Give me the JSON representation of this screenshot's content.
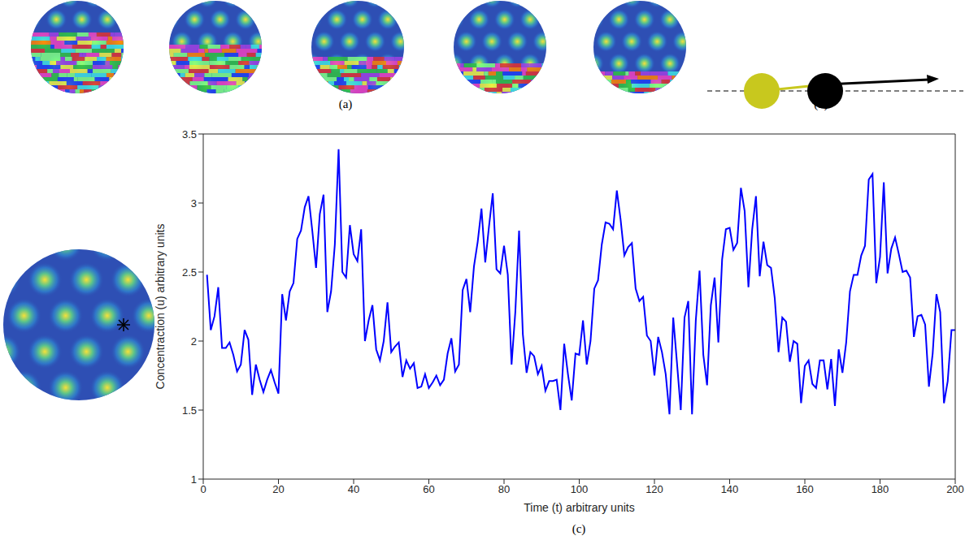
{
  "panel_labels": [
    "(a)",
    "(b)",
    "(c)"
  ],
  "chart_data": {
    "type": "line",
    "x_label": "Time (t) arbitrary units",
    "y_label": "Concentraction (u) arbitrary units",
    "xlim": [
      0,
      200
    ],
    "xticks": [
      0,
      20,
      40,
      60,
      80,
      100,
      120,
      140,
      160,
      180,
      200
    ],
    "ylim": [
      1,
      3.5
    ],
    "yticks": [
      1,
      1.5,
      2,
      2.5,
      3,
      3.5
    ],
    "grid": false,
    "x": [
      1,
      2,
      3,
      4,
      5,
      6,
      7,
      8,
      9,
      10,
      11,
      12,
      13,
      14,
      15,
      16,
      17,
      18,
      19,
      20,
      21,
      22,
      23,
      24,
      25,
      26,
      27,
      28,
      29,
      30,
      31,
      32,
      33,
      34,
      35,
      36,
      37,
      38,
      39,
      40,
      41,
      42,
      43,
      44,
      45,
      46,
      47,
      48,
      49,
      50,
      51,
      52,
      53,
      54,
      55,
      56,
      57,
      58,
      59,
      60,
      61,
      62,
      63,
      64,
      65,
      66,
      67,
      68,
      69,
      70,
      71,
      72,
      73,
      74,
      75,
      76,
      77,
      78,
      79,
      80,
      81,
      82,
      83,
      84,
      85,
      86,
      87,
      88,
      89,
      90,
      91,
      92,
      93,
      94,
      95,
      96,
      97,
      98,
      99,
      100,
      101,
      102,
      103,
      104,
      105,
      106,
      107,
      108,
      109,
      110,
      111,
      112,
      113,
      114,
      115,
      116,
      117,
      118,
      119,
      120,
      121,
      122,
      123,
      124,
      125,
      126,
      127,
      128,
      129,
      130,
      131,
      132,
      133,
      134,
      135,
      136,
      137,
      138,
      139,
      140,
      141,
      142,
      143,
      144,
      145,
      146,
      147,
      148,
      149,
      150,
      151,
      152,
      153,
      154,
      155,
      156,
      157,
      158,
      159,
      160,
      161,
      162,
      163,
      164,
      165,
      166,
      167,
      168,
      169,
      170,
      171,
      172,
      173,
      174,
      175,
      176,
      177,
      178,
      179,
      180,
      181,
      182,
      183,
      184,
      185,
      186,
      187,
      188,
      189,
      190,
      191,
      192,
      193,
      194,
      195,
      196,
      197,
      198,
      199,
      200
    ],
    "series": [
      {
        "color": "#0000ff",
        "values": [
          2.48,
          2.08,
          2.18,
          2.39,
          1.95,
          1.95,
          1.99,
          1.9,
          1.78,
          1.83,
          2.08,
          2.01,
          1.61,
          1.83,
          1.72,
          1.63,
          1.72,
          1.79,
          1.7,
          1.62,
          2.34,
          2.15,
          2.36,
          2.42,
          2.74,
          2.8,
          2.97,
          3.05,
          2.8,
          2.53,
          2.92,
          3.06,
          2.21,
          2.36,
          2.7,
          3.39,
          2.5,
          2.46,
          2.84,
          2.63,
          2.58,
          2.81,
          2.0,
          2.15,
          2.26,
          1.94,
          1.86,
          2.0,
          2.28,
          1.92,
          1.96,
          1.99,
          1.74,
          1.86,
          1.8,
          1.84,
          1.66,
          1.67,
          1.76,
          1.66,
          1.7,
          1.75,
          1.68,
          1.72,
          1.91,
          2.02,
          1.78,
          1.83,
          2.37,
          2.45,
          2.21,
          2.54,
          2.72,
          2.96,
          2.57,
          2.83,
          3.07,
          2.52,
          2.49,
          2.69,
          2.48,
          1.83,
          2.21,
          2.8,
          2.05,
          1.77,
          1.92,
          1.89,
          1.76,
          1.82,
          1.64,
          1.71,
          1.71,
          1.72,
          1.5,
          1.98,
          1.76,
          1.57,
          1.91,
          1.9,
          2.15,
          1.83,
          2.0,
          2.38,
          2.44,
          2.7,
          2.86,
          2.85,
          2.81,
          3.09,
          2.88,
          2.62,
          2.68,
          2.71,
          2.38,
          2.29,
          2.32,
          2.04,
          2.0,
          1.75,
          2.03,
          1.92,
          1.76,
          1.47,
          2.17,
          1.84,
          1.5,
          2.17,
          2.29,
          1.47,
          2.15,
          2.51,
          1.9,
          1.68,
          2.26,
          2.46,
          1.99,
          2.59,
          2.81,
          2.82,
          2.66,
          2.71,
          3.11,
          2.94,
          2.39,
          2.81,
          3.05,
          2.47,
          2.72,
          2.55,
          2.53,
          2.31,
          1.92,
          2.17,
          2.14,
          1.85,
          2.0,
          1.98,
          1.55,
          1.82,
          1.86,
          1.69,
          1.66,
          1.86,
          1.86,
          1.65,
          1.87,
          1.53,
          1.94,
          1.77,
          1.99,
          2.36,
          2.48,
          2.48,
          2.62,
          2.69,
          3.17,
          3.21,
          2.42,
          2.61,
          3.15,
          2.49,
          2.67,
          2.75,
          2.63,
          2.5,
          2.51,
          2.46,
          2.03,
          2.18,
          2.19,
          2.12,
          1.67,
          1.91,
          2.34,
          2.21,
          1.55,
          1.71,
          2.08,
          2.08
        ]
      }
    ]
  }
}
